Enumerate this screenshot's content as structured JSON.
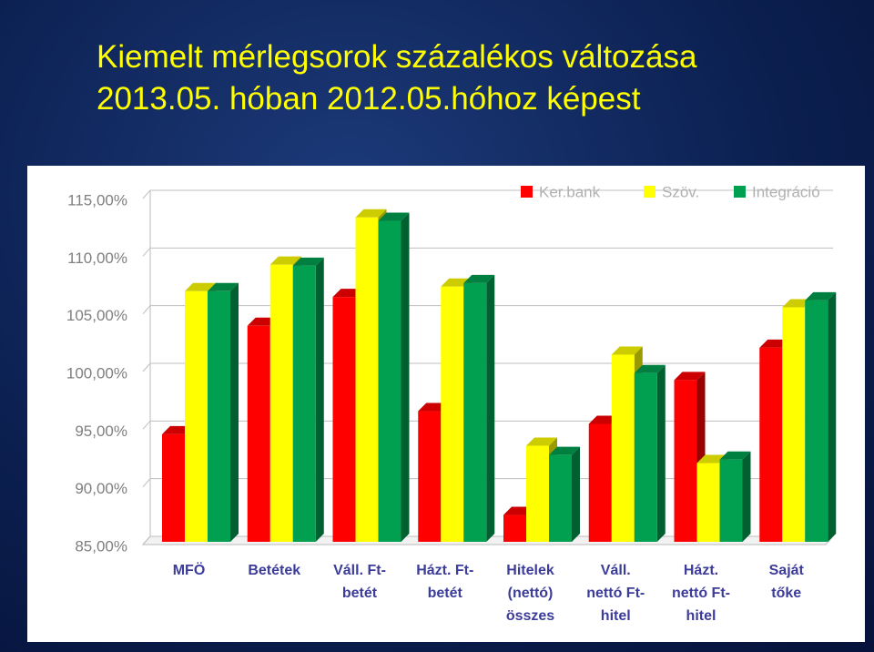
{
  "chart_data": {
    "type": "bar",
    "title": "Kiemelt mérlegsorok százalékos változása\n2013.05. hóban 2012.05.hóhoz képest",
    "categories": [
      "MFÖ",
      "Betétek",
      "Váll. Ft-\nbetét",
      "Házt. Ft-\nbetét",
      "Hitelek\n(nettó)\nösszes",
      "Váll.\nnettó Ft-\nhitel",
      "Házt.\nnettó Ft-\nhitel",
      "Saját\ntőke"
    ],
    "series": [
      {
        "name": "Ker.bank",
        "color": "#ff0000",
        "values": [
          94.8,
          104.2,
          106.7,
          96.8,
          87.8,
          95.7,
          99.5,
          102.3
        ]
      },
      {
        "name": "Szöv.",
        "color": "#ffff00",
        "values": [
          107.2,
          109.5,
          113.6,
          107.6,
          93.8,
          101.7,
          92.3,
          105.8
        ]
      },
      {
        "name": "Integráció",
        "color": "#00a050",
        "values": [
          107.2,
          109.4,
          113.3,
          107.9,
          93.0,
          100.1,
          92.6,
          106.4
        ]
      }
    ],
    "ylim": [
      85,
      115
    ],
    "yticks": [
      {
        "value": 85,
        "label": "85,00%"
      },
      {
        "value": 90,
        "label": "90,00%"
      },
      {
        "value": 95,
        "label": "95,00%"
      },
      {
        "value": 100,
        "label": "100,00%"
      },
      {
        "value": 105,
        "label": "105,00%"
      },
      {
        "value": 110,
        "label": "110,00%"
      },
      {
        "value": 115,
        "label": "115,00%"
      }
    ],
    "grid": true,
    "legend": "top-right"
  }
}
